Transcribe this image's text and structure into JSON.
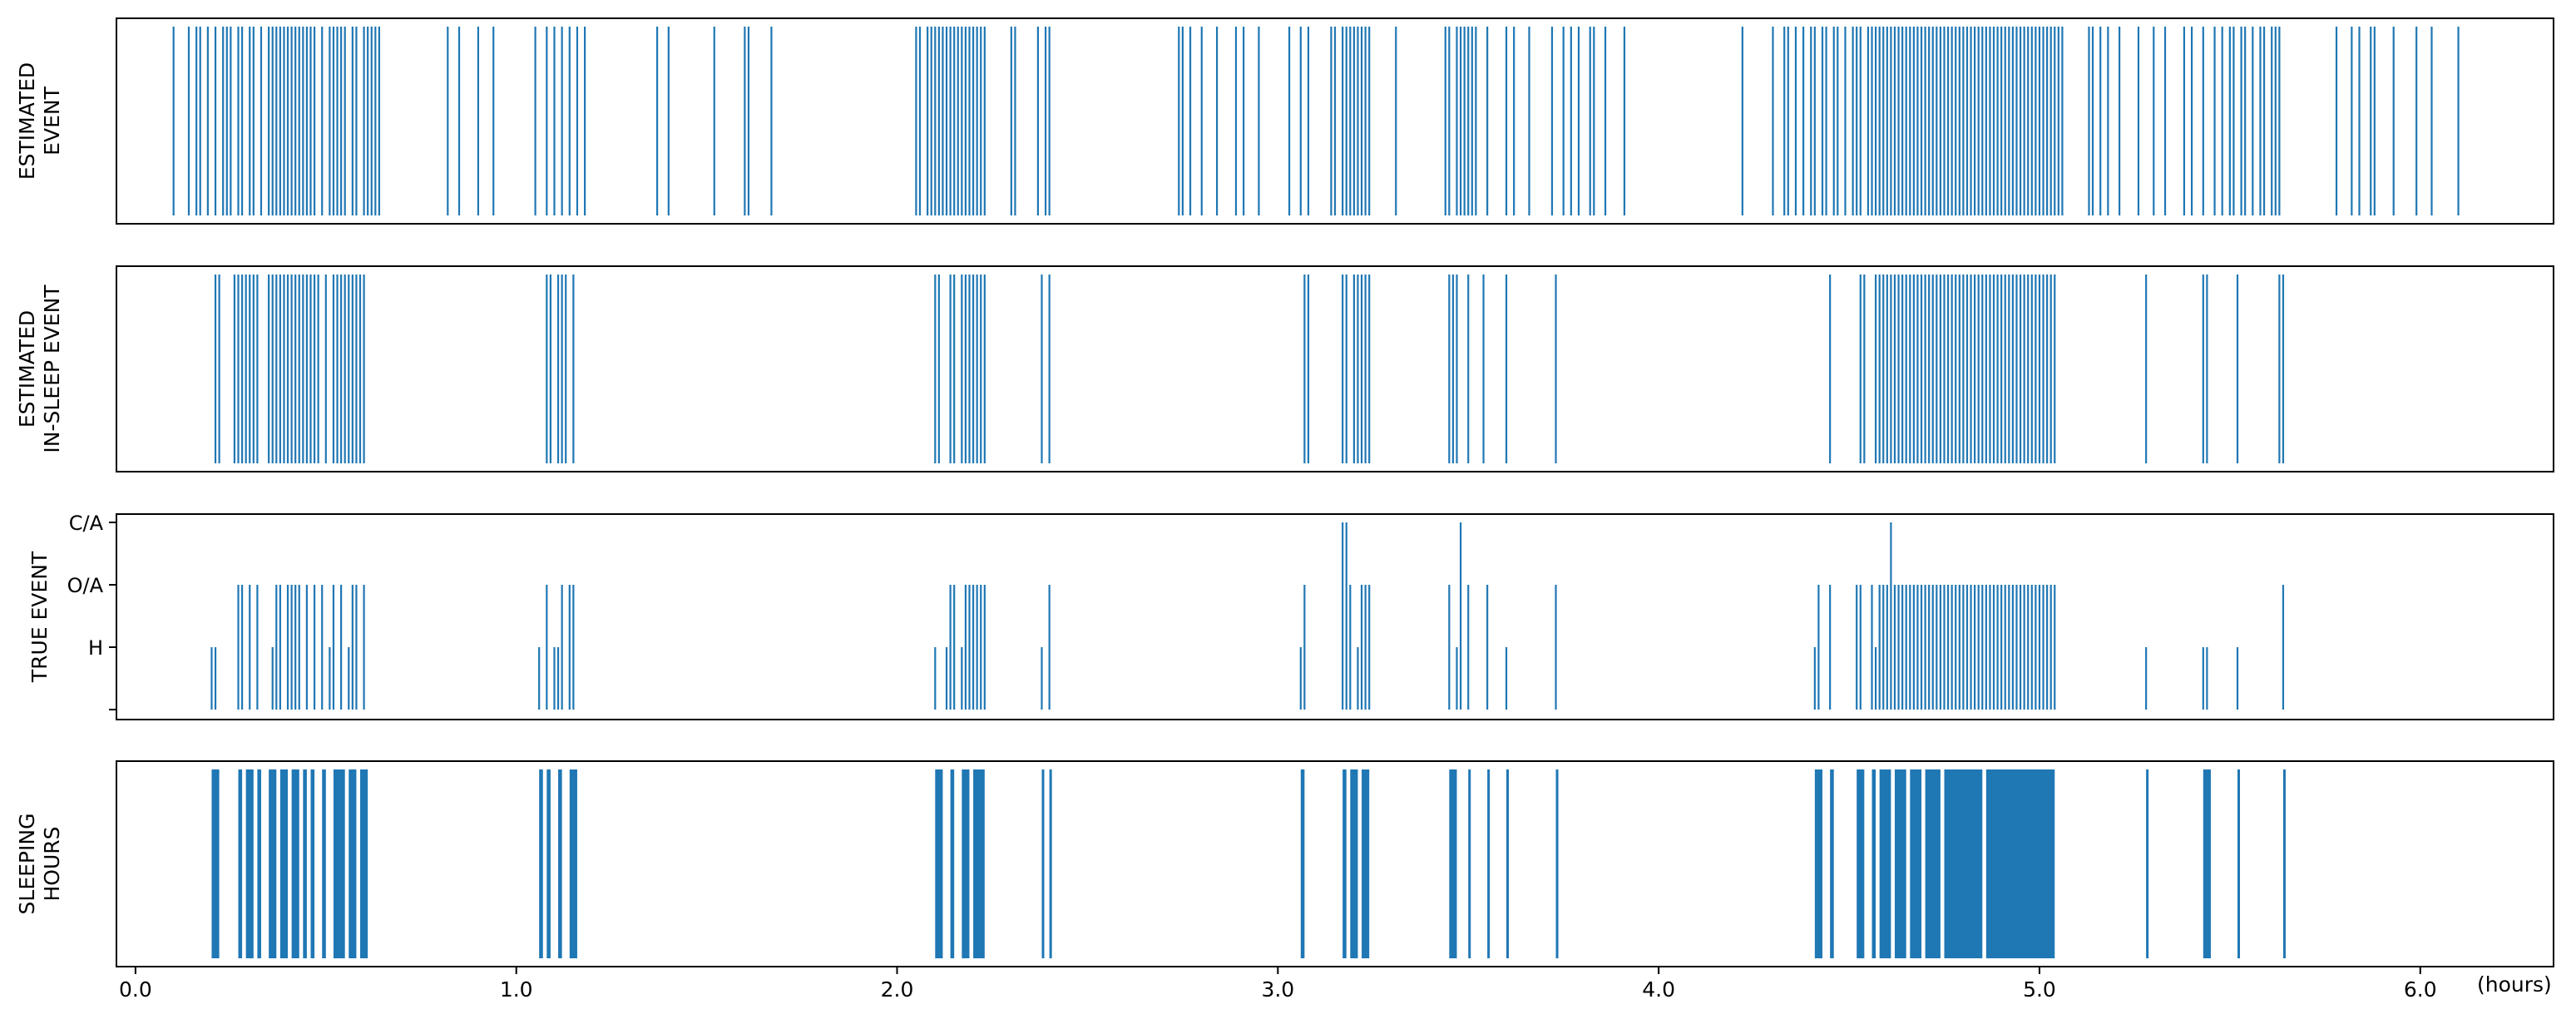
{
  "chart_data": {
    "type": "event-raster",
    "x_unit_label": "(hours)",
    "xlim": [
      -0.05,
      6.35
    ],
    "x_ticks": [
      "0.0",
      "1.0",
      "2.0",
      "3.0",
      "4.0",
      "5.0",
      "6.0"
    ],
    "x_tick_values": [
      0,
      1,
      2,
      3,
      4,
      5,
      6
    ],
    "color": "#1f77b4",
    "panels": [
      {
        "key": "estimated_event",
        "ylabel_lines": [
          "ESTIMATED",
          "EVENT"
        ],
        "events": [
          0.1,
          0.14,
          0.16,
          0.17,
          0.19,
          0.21,
          0.23,
          0.24,
          0.25,
          0.27,
          0.28,
          0.3,
          0.31,
          0.33,
          0.35,
          0.36,
          0.37,
          0.38,
          0.39,
          0.4,
          0.41,
          0.42,
          0.43,
          0.44,
          0.45,
          0.46,
          0.47,
          0.49,
          0.51,
          0.52,
          0.53,
          0.54,
          0.55,
          0.57,
          0.58,
          0.6,
          0.61,
          0.62,
          0.63,
          0.64,
          0.82,
          0.85,
          0.9,
          0.94,
          1.05,
          1.08,
          1.1,
          1.12,
          1.14,
          1.16,
          1.18,
          1.37,
          1.4,
          1.52,
          1.6,
          1.61,
          1.67,
          2.05,
          2.06,
          2.08,
          2.09,
          2.1,
          2.11,
          2.12,
          2.13,
          2.14,
          2.15,
          2.16,
          2.17,
          2.18,
          2.19,
          2.2,
          2.21,
          2.22,
          2.23,
          2.3,
          2.31,
          2.37,
          2.39,
          2.4,
          2.74,
          2.75,
          2.77,
          2.8,
          2.84,
          2.89,
          2.91,
          2.95,
          3.03,
          3.06,
          3.08,
          3.14,
          3.15,
          3.17,
          3.18,
          3.19,
          3.2,
          3.21,
          3.22,
          3.23,
          3.24,
          3.31,
          3.44,
          3.45,
          3.47,
          3.48,
          3.49,
          3.5,
          3.51,
          3.52,
          3.55,
          3.6,
          3.62,
          3.66,
          3.72,
          3.75,
          3.77,
          3.79,
          3.82,
          3.83,
          3.86,
          3.91,
          4.22,
          4.3,
          4.33,
          4.34,
          4.36,
          4.38,
          4.4,
          4.41,
          4.43,
          4.44,
          4.46,
          4.47,
          4.49,
          4.51,
          4.52,
          4.53,
          4.55,
          4.56,
          4.57,
          4.58,
          4.59,
          4.6,
          4.61,
          4.62,
          4.63,
          4.64,
          4.65,
          4.66,
          4.67,
          4.68,
          4.69,
          4.7,
          4.71,
          4.72,
          4.73,
          4.74,
          4.75,
          4.76,
          4.77,
          4.78,
          4.79,
          4.8,
          4.81,
          4.82,
          4.83,
          4.84,
          4.85,
          4.86,
          4.87,
          4.88,
          4.89,
          4.9,
          4.91,
          4.92,
          4.93,
          4.94,
          4.95,
          4.96,
          4.97,
          4.98,
          4.99,
          5.0,
          5.01,
          5.02,
          5.03,
          5.04,
          5.05,
          5.06,
          5.13,
          5.14,
          5.16,
          5.18,
          5.21,
          5.26,
          5.3,
          5.33,
          5.38,
          5.4,
          5.43,
          5.46,
          5.48,
          5.5,
          5.51,
          5.53,
          5.54,
          5.56,
          5.58,
          5.59,
          5.61,
          5.62,
          5.63,
          5.78,
          5.82,
          5.84,
          5.87,
          5.88,
          5.93,
          5.99,
          6.03,
          6.1
        ]
      },
      {
        "key": "estimated_in_sleep_event",
        "ylabel_lines": [
          "ESTIMATED",
          "IN-SLEEP EVENT"
        ],
        "events": [
          0.21,
          0.22,
          0.26,
          0.27,
          0.28,
          0.29,
          0.3,
          0.31,
          0.32,
          0.35,
          0.36,
          0.37,
          0.38,
          0.39,
          0.4,
          0.41,
          0.42,
          0.43,
          0.44,
          0.45,
          0.46,
          0.47,
          0.48,
          0.5,
          0.52,
          0.53,
          0.54,
          0.55,
          0.56,
          0.57,
          0.58,
          0.59,
          0.6,
          1.08,
          1.09,
          1.11,
          1.12,
          1.13,
          1.15,
          2.1,
          2.11,
          2.14,
          2.15,
          2.17,
          2.18,
          2.19,
          2.2,
          2.21,
          2.22,
          2.23,
          2.38,
          2.4,
          3.07,
          3.08,
          3.17,
          3.18,
          3.2,
          3.21,
          3.22,
          3.23,
          3.24,
          3.45,
          3.46,
          3.47,
          3.5,
          3.54,
          3.6,
          3.73,
          4.45,
          4.53,
          4.54,
          4.57,
          4.58,
          4.59,
          4.6,
          4.61,
          4.62,
          4.63,
          4.64,
          4.65,
          4.66,
          4.67,
          4.68,
          4.69,
          4.7,
          4.71,
          4.72,
          4.73,
          4.74,
          4.75,
          4.76,
          4.77,
          4.78,
          4.79,
          4.8,
          4.81,
          4.82,
          4.83,
          4.84,
          4.85,
          4.86,
          4.87,
          4.88,
          4.89,
          4.9,
          4.91,
          4.92,
          4.93,
          4.94,
          4.95,
          4.96,
          4.97,
          4.98,
          4.99,
          5.0,
          5.01,
          5.02,
          5.03,
          5.04,
          5.28,
          5.43,
          5.44,
          5.52,
          5.63,
          5.64
        ]
      },
      {
        "key": "true_event",
        "ylabel_lines": [
          "TRUE EVENT"
        ],
        "y_ticks": [
          "",
          "H",
          "O/A",
          "C/A"
        ],
        "events": [
          {
            "x": 0.2,
            "level": 1
          },
          {
            "x": 0.21,
            "level": 1
          },
          {
            "x": 0.27,
            "level": 2
          },
          {
            "x": 0.28,
            "level": 2
          },
          {
            "x": 0.3,
            "level": 2
          },
          {
            "x": 0.32,
            "level": 2
          },
          {
            "x": 0.36,
            "level": 1
          },
          {
            "x": 0.37,
            "level": 2
          },
          {
            "x": 0.38,
            "level": 2
          },
          {
            "x": 0.4,
            "level": 2
          },
          {
            "x": 0.41,
            "level": 2
          },
          {
            "x": 0.42,
            "level": 2
          },
          {
            "x": 0.43,
            "level": 2
          },
          {
            "x": 0.45,
            "level": 2
          },
          {
            "x": 0.47,
            "level": 2
          },
          {
            "x": 0.49,
            "level": 2
          },
          {
            "x": 0.51,
            "level": 1
          },
          {
            "x": 0.52,
            "level": 2
          },
          {
            "x": 0.54,
            "level": 2
          },
          {
            "x": 0.56,
            "level": 1
          },
          {
            "x": 0.57,
            "level": 2
          },
          {
            "x": 0.58,
            "level": 2
          },
          {
            "x": 0.6,
            "level": 2
          },
          {
            "x": 1.06,
            "level": 1
          },
          {
            "x": 1.08,
            "level": 2
          },
          {
            "x": 1.1,
            "level": 1
          },
          {
            "x": 1.11,
            "level": 1
          },
          {
            "x": 1.12,
            "level": 2
          },
          {
            "x": 1.14,
            "level": 2
          },
          {
            "x": 1.15,
            "level": 2
          },
          {
            "x": 2.1,
            "level": 1
          },
          {
            "x": 2.13,
            "level": 1
          },
          {
            "x": 2.14,
            "level": 2
          },
          {
            "x": 2.15,
            "level": 2
          },
          {
            "x": 2.17,
            "level": 1
          },
          {
            "x": 2.18,
            "level": 2
          },
          {
            "x": 2.19,
            "level": 2
          },
          {
            "x": 2.2,
            "level": 2
          },
          {
            "x": 2.21,
            "level": 2
          },
          {
            "x": 2.22,
            "level": 2
          },
          {
            "x": 2.23,
            "level": 2
          },
          {
            "x": 2.38,
            "level": 1
          },
          {
            "x": 2.4,
            "level": 2
          },
          {
            "x": 3.06,
            "level": 1
          },
          {
            "x": 3.07,
            "level": 2
          },
          {
            "x": 3.17,
            "level": 3
          },
          {
            "x": 3.18,
            "level": 3
          },
          {
            "x": 3.19,
            "level": 2
          },
          {
            "x": 3.21,
            "level": 1
          },
          {
            "x": 3.22,
            "level": 2
          },
          {
            "x": 3.23,
            "level": 2
          },
          {
            "x": 3.24,
            "level": 2
          },
          {
            "x": 3.45,
            "level": 2
          },
          {
            "x": 3.47,
            "level": 1
          },
          {
            "x": 3.48,
            "level": 3
          },
          {
            "x": 3.5,
            "level": 2
          },
          {
            "x": 3.55,
            "level": 2
          },
          {
            "x": 3.6,
            "level": 1
          },
          {
            "x": 3.73,
            "level": 2
          },
          {
            "x": 4.41,
            "level": 1
          },
          {
            "x": 4.42,
            "level": 2
          },
          {
            "x": 4.45,
            "level": 2
          },
          {
            "x": 4.52,
            "level": 2
          },
          {
            "x": 4.53,
            "level": 2
          },
          {
            "x": 4.56,
            "level": 2
          },
          {
            "x": 4.57,
            "level": 1
          },
          {
            "x": 4.58,
            "level": 2
          },
          {
            "x": 4.59,
            "level": 2
          },
          {
            "x": 4.6,
            "level": 2
          },
          {
            "x": 4.61,
            "level": 3
          },
          {
            "x": 4.62,
            "level": 2
          },
          {
            "x": 4.63,
            "level": 2
          },
          {
            "x": 4.64,
            "level": 2
          },
          {
            "x": 4.65,
            "level": 2
          },
          {
            "x": 4.66,
            "level": 2
          },
          {
            "x": 4.67,
            "level": 2
          },
          {
            "x": 4.68,
            "level": 2
          },
          {
            "x": 4.69,
            "level": 2
          },
          {
            "x": 4.7,
            "level": 2
          },
          {
            "x": 4.71,
            "level": 2
          },
          {
            "x": 4.72,
            "level": 2
          },
          {
            "x": 4.73,
            "level": 2
          },
          {
            "x": 4.74,
            "level": 2
          },
          {
            "x": 4.75,
            "level": 2
          },
          {
            "x": 4.76,
            "level": 2
          },
          {
            "x": 4.77,
            "level": 2
          },
          {
            "x": 4.78,
            "level": 2
          },
          {
            "x": 4.79,
            "level": 2
          },
          {
            "x": 4.8,
            "level": 2
          },
          {
            "x": 4.81,
            "level": 2
          },
          {
            "x": 4.82,
            "level": 2
          },
          {
            "x": 4.83,
            "level": 2
          },
          {
            "x": 4.84,
            "level": 2
          },
          {
            "x": 4.85,
            "level": 2
          },
          {
            "x": 4.86,
            "level": 2
          },
          {
            "x": 4.87,
            "level": 2
          },
          {
            "x": 4.88,
            "level": 2
          },
          {
            "x": 4.89,
            "level": 2
          },
          {
            "x": 4.9,
            "level": 2
          },
          {
            "x": 4.91,
            "level": 2
          },
          {
            "x": 4.92,
            "level": 2
          },
          {
            "x": 4.93,
            "level": 2
          },
          {
            "x": 4.94,
            "level": 2
          },
          {
            "x": 4.95,
            "level": 2
          },
          {
            "x": 4.96,
            "level": 2
          },
          {
            "x": 4.97,
            "level": 2
          },
          {
            "x": 4.98,
            "level": 2
          },
          {
            "x": 4.99,
            "level": 2
          },
          {
            "x": 5.0,
            "level": 2
          },
          {
            "x": 5.01,
            "level": 2
          },
          {
            "x": 5.02,
            "level": 2
          },
          {
            "x": 5.03,
            "level": 2
          },
          {
            "x": 5.04,
            "level": 2
          },
          {
            "x": 5.28,
            "level": 1
          },
          {
            "x": 5.43,
            "level": 1
          },
          {
            "x": 5.44,
            "level": 1
          },
          {
            "x": 5.52,
            "level": 1
          },
          {
            "x": 5.64,
            "level": 2
          }
        ]
      },
      {
        "key": "sleeping_hours",
        "ylabel_lines": [
          "SLEEPING",
          "HOURS"
        ],
        "intervals": [
          [
            0.2,
            0.22
          ],
          [
            0.27,
            0.28
          ],
          [
            0.29,
            0.31
          ],
          [
            0.32,
            0.33
          ],
          [
            0.35,
            0.37
          ],
          [
            0.38,
            0.4
          ],
          [
            0.41,
            0.43
          ],
          [
            0.44,
            0.45
          ],
          [
            0.46,
            0.47
          ],
          [
            0.49,
            0.5
          ],
          [
            0.52,
            0.55
          ],
          [
            0.56,
            0.58
          ],
          [
            0.59,
            0.61
          ],
          [
            1.06,
            1.07
          ],
          [
            1.08,
            1.09
          ],
          [
            1.11,
            1.12
          ],
          [
            1.14,
            1.16
          ],
          [
            2.1,
            2.12
          ],
          [
            2.14,
            2.15
          ],
          [
            2.17,
            2.19
          ],
          [
            2.2,
            2.23
          ],
          [
            2.38,
            2.385
          ],
          [
            2.4,
            2.405
          ],
          [
            3.06,
            3.07
          ],
          [
            3.17,
            3.18
          ],
          [
            3.19,
            3.21
          ],
          [
            3.22,
            3.24
          ],
          [
            3.45,
            3.47
          ],
          [
            3.5,
            3.505
          ],
          [
            3.55,
            3.555
          ],
          [
            3.6,
            3.605
          ],
          [
            3.73,
            3.735
          ],
          [
            4.41,
            4.43
          ],
          [
            4.45,
            4.46
          ],
          [
            4.52,
            4.54
          ],
          [
            4.56,
            4.57
          ],
          [
            4.58,
            4.61
          ],
          [
            4.62,
            4.65
          ],
          [
            4.66,
            4.69
          ],
          [
            4.7,
            4.74
          ],
          [
            4.75,
            4.85
          ],
          [
            4.86,
            5.04
          ],
          [
            5.28,
            5.285
          ],
          [
            5.43,
            5.45
          ],
          [
            5.52,
            5.525
          ],
          [
            5.64,
            5.645
          ]
        ]
      }
    ]
  }
}
